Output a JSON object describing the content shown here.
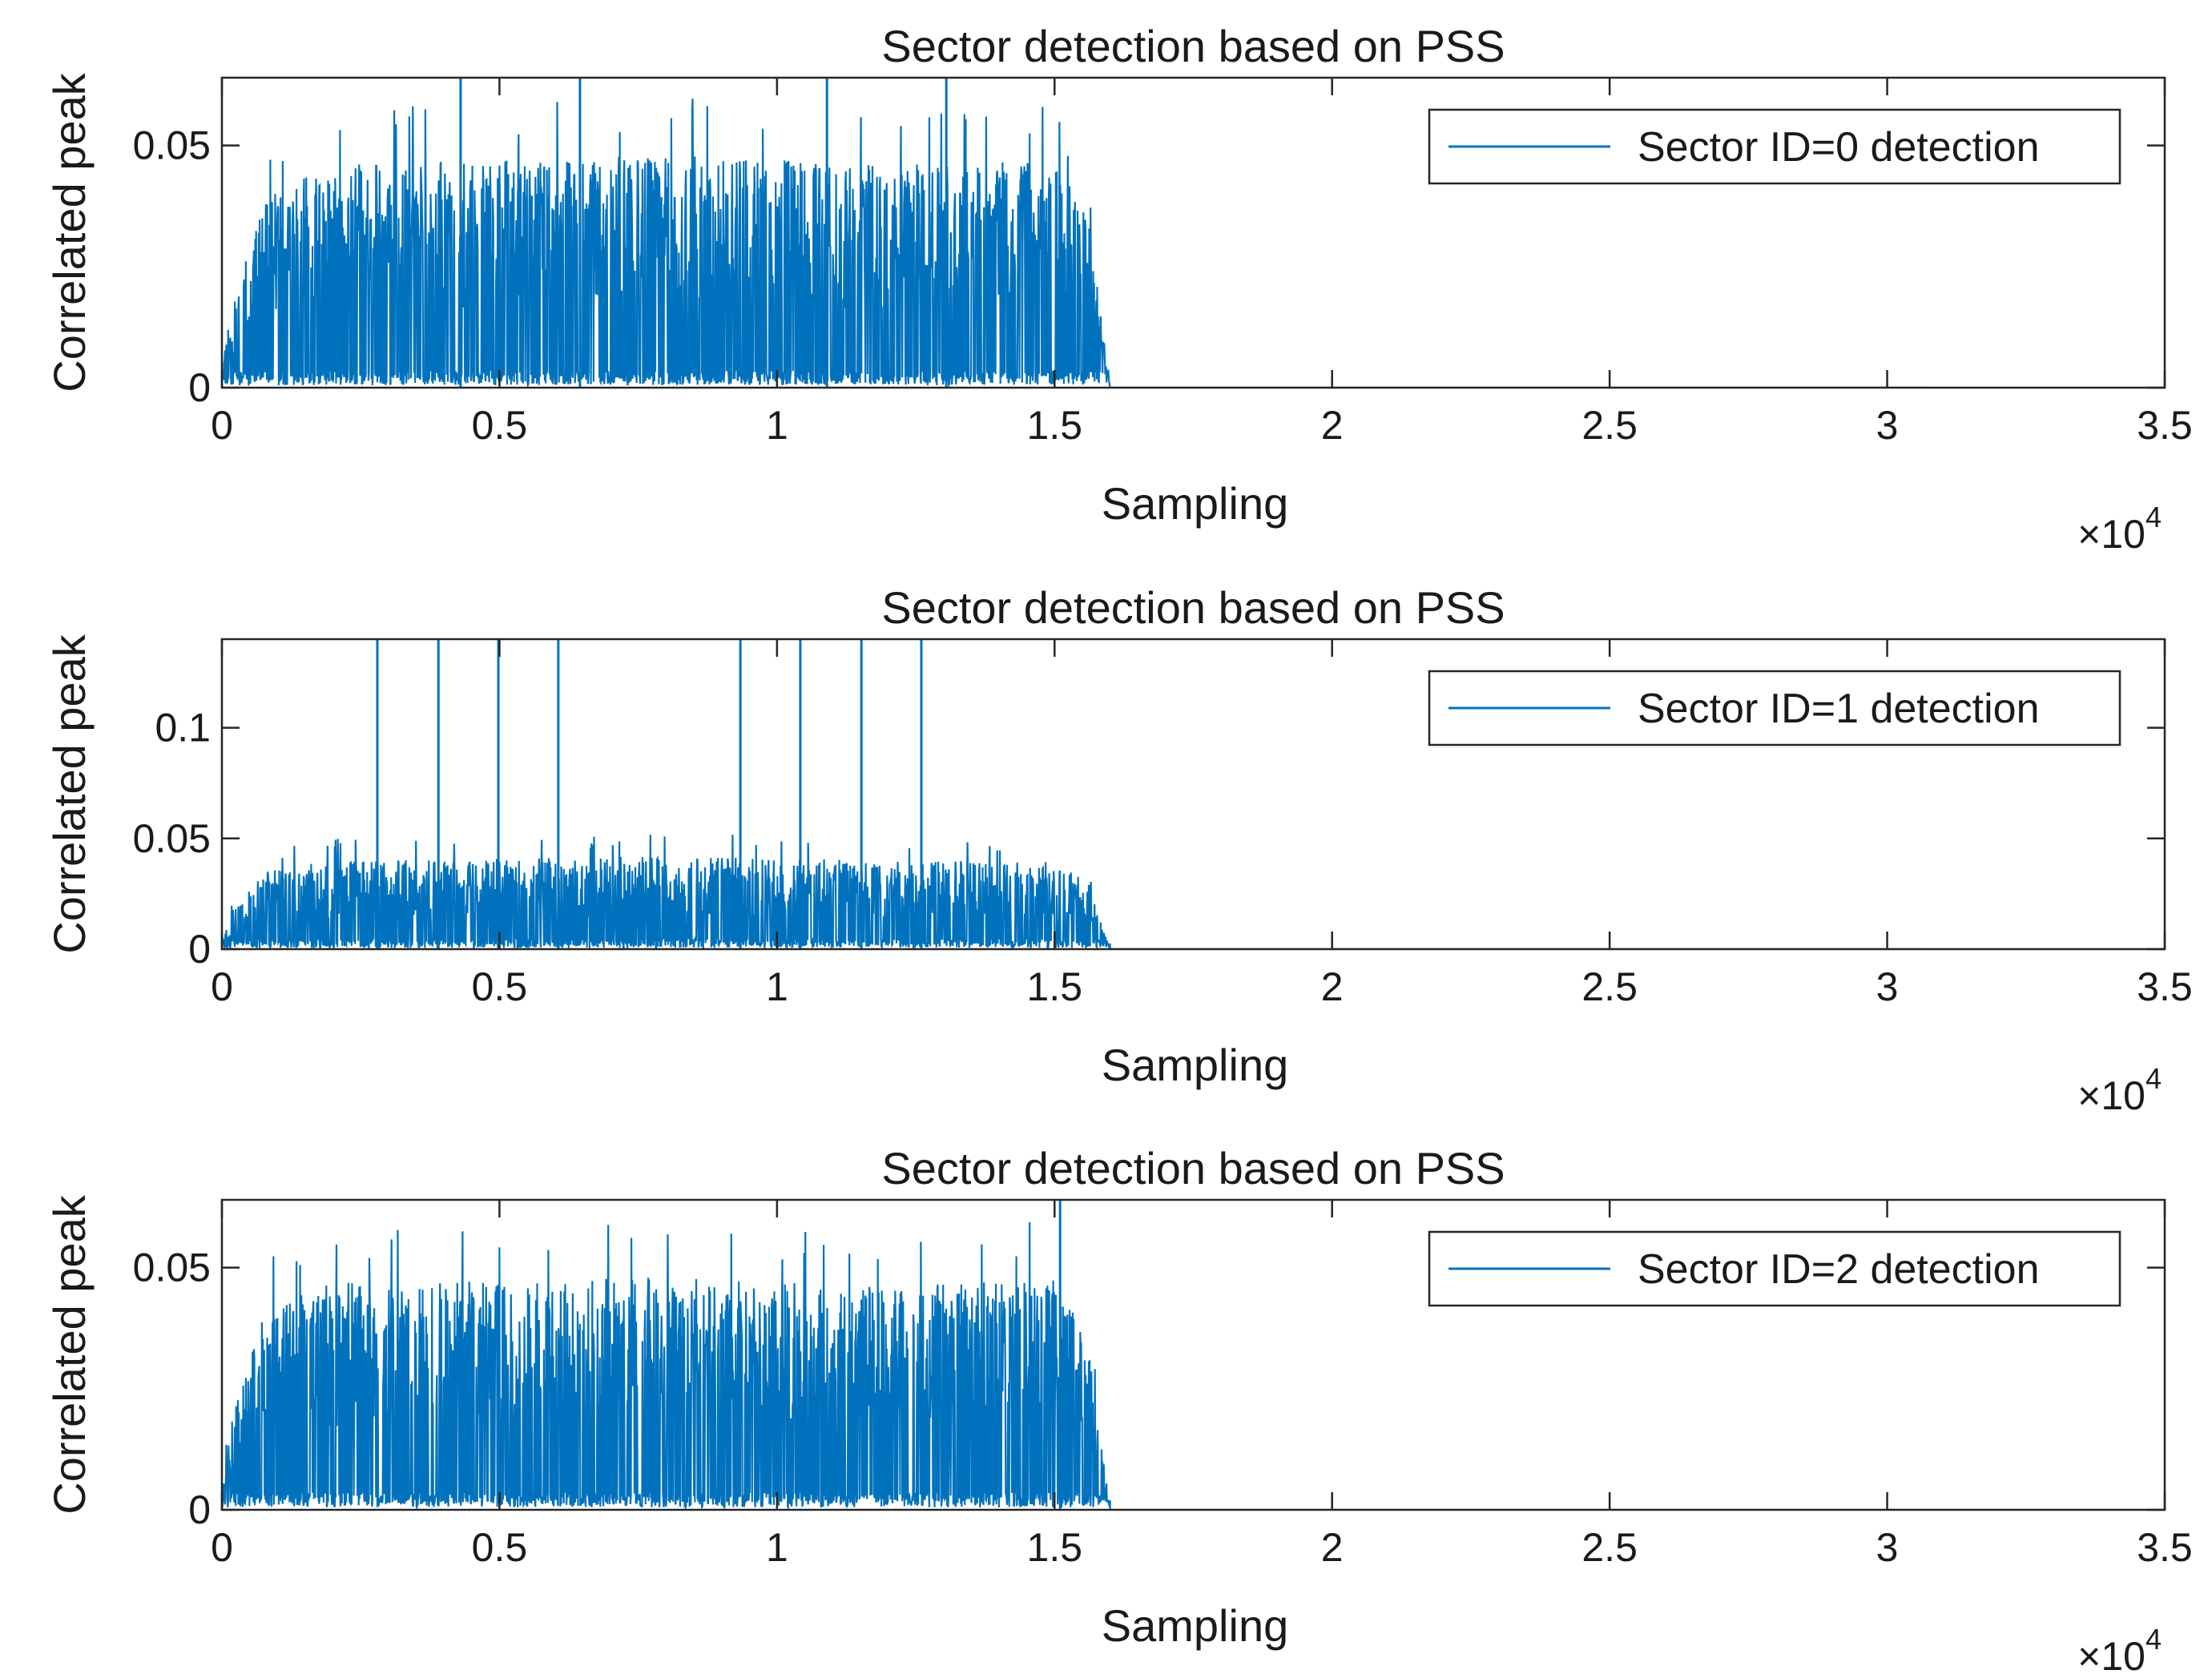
{
  "figure": {
    "line_color": "#0072BD",
    "axis_color": "#262626",
    "legend_line_length_hint": "short"
  },
  "chart_data": [
    {
      "type": "line",
      "title": "Sector detection based on PSS",
      "xlabel": "Sampling",
      "ylabel": "Correlated peak",
      "xlim": [
        0,
        35000
      ],
      "ylim": [
        0,
        0.064
      ],
      "x_ticks": [
        0,
        5000,
        10000,
        15000,
        20000,
        25000,
        30000,
        35000
      ],
      "x_tick_labels": [
        "0",
        "0.5",
        "1",
        "1.5",
        "2",
        "2.5",
        "3",
        "3.5"
      ],
      "x_exponent_label": {
        "base": "×10",
        "exponent": "4"
      },
      "y_ticks": [
        0,
        0.05
      ],
      "y_tick_labels": [
        "0",
        "0.05"
      ],
      "legend": {
        "label": "Sector ID=0 detection",
        "location": "top-right"
      },
      "signal": {
        "active_range": [
          0,
          16000
        ],
        "zero_until": 30720,
        "baseline": 0.003,
        "envelope": [
          [
            0,
            0.005
          ],
          [
            200,
            0.018
          ],
          [
            800,
            0.04
          ],
          [
            2000,
            0.046
          ],
          [
            8000,
            0.048
          ],
          [
            12000,
            0.046
          ],
          [
            15000,
            0.047
          ],
          [
            15600,
            0.036
          ],
          [
            16000,
            0.0
          ]
        ],
        "spikes": [
          {
            "x": 4300,
            "y": 0.064
          },
          {
            "x": 6450,
            "y": 0.064
          },
          {
            "x": 10900,
            "y": 0.064
          },
          {
            "x": 13050,
            "y": 0.064
          }
        ],
        "seed": 11
      }
    },
    {
      "type": "line",
      "title": "Sector detection based on PSS",
      "xlabel": "Sampling",
      "ylabel": "Correlated peak",
      "xlim": [
        0,
        35000
      ],
      "ylim": [
        0,
        0.14
      ],
      "x_ticks": [
        0,
        5000,
        10000,
        15000,
        20000,
        25000,
        30000,
        35000
      ],
      "x_tick_labels": [
        "0",
        "0.5",
        "1",
        "1.5",
        "2",
        "2.5",
        "3",
        "3.5"
      ],
      "x_exponent_label": {
        "base": "×10",
        "exponent": "4"
      },
      "y_ticks": [
        0,
        0.05,
        0.1
      ],
      "y_tick_labels": [
        "0",
        "0.05",
        "0.1"
      ],
      "legend": {
        "label": "Sector ID=1 detection",
        "location": "top-right"
      },
      "signal": {
        "active_range": [
          0,
          16000
        ],
        "zero_until": 30720,
        "baseline": 0.004,
        "envelope": [
          [
            0,
            0.006
          ],
          [
            200,
            0.018
          ],
          [
            800,
            0.036
          ],
          [
            2000,
            0.04
          ],
          [
            8000,
            0.042
          ],
          [
            12000,
            0.04
          ],
          [
            15000,
            0.04
          ],
          [
            15600,
            0.032
          ],
          [
            16000,
            0.0
          ]
        ],
        "spikes": [
          {
            "x": 2800,
            "y": 0.14
          },
          {
            "x": 3900,
            "y": 0.14
          },
          {
            "x": 4980,
            "y": 0.14
          },
          {
            "x": 6060,
            "y": 0.14
          },
          {
            "x": 9340,
            "y": 0.14
          },
          {
            "x": 10420,
            "y": 0.14
          },
          {
            "x": 11520,
            "y": 0.14
          },
          {
            "x": 12600,
            "y": 0.14
          }
        ],
        "seed": 23
      }
    },
    {
      "type": "line",
      "title": "Sector detection based on PSS",
      "xlabel": "Sampling",
      "ylabel": "Correlated peak",
      "xlim": [
        0,
        35000
      ],
      "ylim": [
        0,
        0.064
      ],
      "x_ticks": [
        0,
        5000,
        10000,
        15000,
        20000,
        25000,
        30000,
        35000
      ],
      "x_tick_labels": [
        "0",
        "0.5",
        "1",
        "1.5",
        "2",
        "2.5",
        "3",
        "3.5"
      ],
      "x_exponent_label": {
        "base": "×10",
        "exponent": "4"
      },
      "y_ticks": [
        0,
        0.05
      ],
      "y_tick_labels": [
        "0",
        "0.05"
      ],
      "legend": {
        "label": "Sector ID=2 detection",
        "location": "top-right"
      },
      "signal": {
        "active_range": [
          0,
          16000
        ],
        "zero_until": 30720,
        "baseline": 0.003,
        "envelope": [
          [
            0,
            0.005
          ],
          [
            200,
            0.02
          ],
          [
            800,
            0.042
          ],
          [
            2000,
            0.047
          ],
          [
            8000,
            0.048
          ],
          [
            12000,
            0.046
          ],
          [
            15000,
            0.048
          ],
          [
            15600,
            0.036
          ],
          [
            16000,
            0.0
          ]
        ],
        "spikes": [
          {
            "x": 15100,
            "y": 0.064
          }
        ],
        "seed": 37
      }
    }
  ]
}
